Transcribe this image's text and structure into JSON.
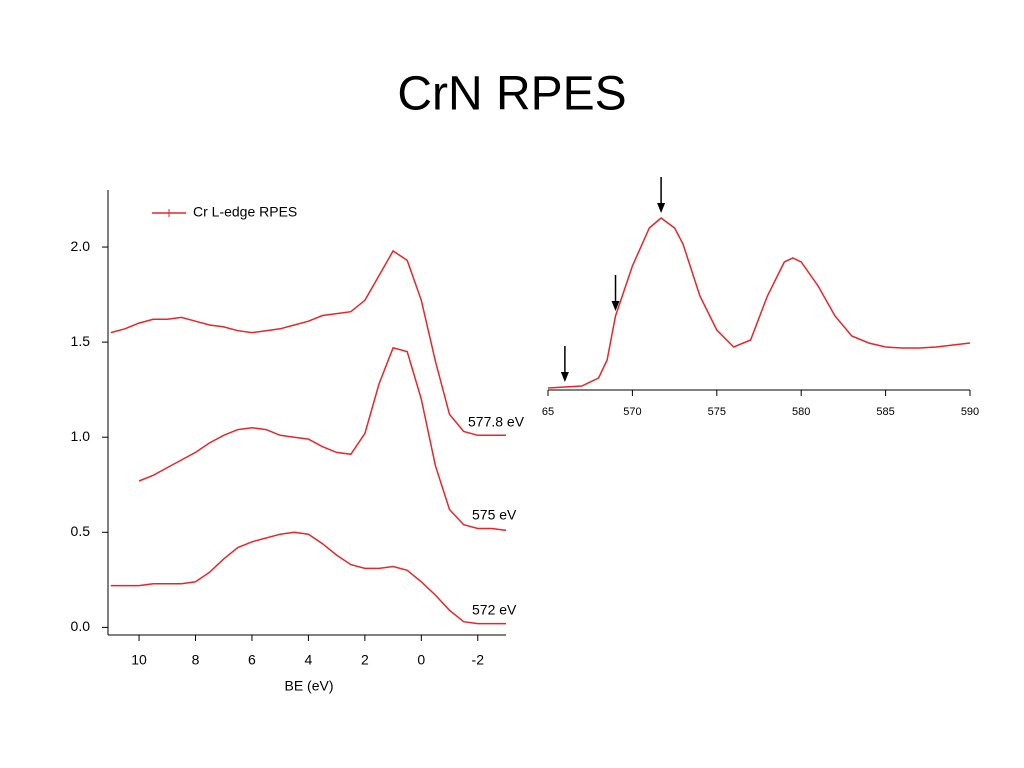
{
  "title": "CrN RPES",
  "chart_data": [
    {
      "type": "line",
      "x_label": "BE (eV)",
      "legend_label": "Cr L-edge RPES",
      "x": [
        11,
        10.5,
        10,
        9.5,
        9,
        8.5,
        8,
        7.5,
        7,
        6.5,
        6,
        5.5,
        5,
        4.5,
        4,
        3.5,
        3,
        2.5,
        2,
        1.5,
        1,
        0.5,
        0,
        -0.5,
        -1,
        -1.5,
        -2,
        -2.5,
        -3
      ],
      "series": [
        {
          "name": "577.8 eV",
          "color": "#e8262a",
          "values": [
            1.55,
            1.57,
            1.6,
            1.62,
            1.62,
            1.63,
            1.61,
            1.59,
            1.58,
            1.56,
            1.55,
            1.56,
            1.57,
            1.59,
            1.61,
            1.64,
            1.65,
            1.66,
            1.72,
            1.85,
            1.98,
            1.93,
            1.72,
            1.4,
            1.12,
            1.03,
            1.01,
            1.01,
            1.01
          ]
        },
        {
          "name": "575 eV",
          "color": "#e8262a",
          "values": [
            null,
            null,
            0.77,
            0.8,
            0.84,
            0.88,
            0.92,
            0.97,
            1.01,
            1.04,
            1.05,
            1.04,
            1.01,
            1.0,
            0.99,
            0.95,
            0.92,
            0.91,
            1.02,
            1.28,
            1.47,
            1.45,
            1.2,
            0.85,
            0.62,
            0.54,
            0.52,
            0.52,
            0.51
          ]
        },
        {
          "name": "572 eV",
          "color": "#e8262a",
          "values": [
            0.22,
            0.22,
            0.22,
            0.23,
            0.23,
            0.23,
            0.24,
            0.29,
            0.36,
            0.42,
            0.45,
            0.47,
            0.49,
            0.5,
            0.49,
            0.44,
            0.38,
            0.33,
            0.31,
            0.31,
            0.32,
            0.3,
            0.24,
            0.17,
            0.09,
            0.03,
            0.02,
            0.02,
            0.02
          ]
        }
      ],
      "xlim": [
        11.1,
        -3
      ],
      "xticks": [
        10,
        8,
        6,
        4,
        2,
        0,
        -2
      ],
      "ylim": [
        -0.04,
        2.3
      ],
      "yticks": [
        {
          "value": 0,
          "label": "0.0"
        },
        0.5,
        {
          "value": 1,
          "label": "1.0"
        },
        1.5,
        {
          "value": 2,
          "label": "2.0"
        }
      ]
    },
    {
      "type": "line",
      "x": [
        565,
        566,
        567,
        568,
        568.5,
        569,
        570,
        571,
        571.7,
        572.5,
        573,
        574,
        575,
        576,
        577,
        578,
        579,
        579.5,
        580,
        581,
        582,
        583,
        584,
        585,
        586,
        587,
        588,
        589,
        590
      ],
      "series": [
        {
          "color": "#e8262a",
          "values": [
            0.01,
            0.015,
            0.02,
            0.06,
            0.15,
            0.37,
            0.62,
            0.81,
            0.86,
            0.81,
            0.73,
            0.47,
            0.3,
            0.215,
            0.25,
            0.47,
            0.64,
            0.66,
            0.64,
            0.52,
            0.37,
            0.27,
            0.235,
            0.215,
            0.21,
            0.21,
            0.215,
            0.225,
            0.235
          ]
        }
      ],
      "arrows_x": [
        566,
        569,
        571.7
      ],
      "xlim": [
        565,
        590
      ],
      "xticks": [
        {
          "value": 565,
          "label": "65"
        },
        570,
        575,
        580,
        585,
        590
      ],
      "ylim": [
        0,
        1
      ]
    }
  ]
}
